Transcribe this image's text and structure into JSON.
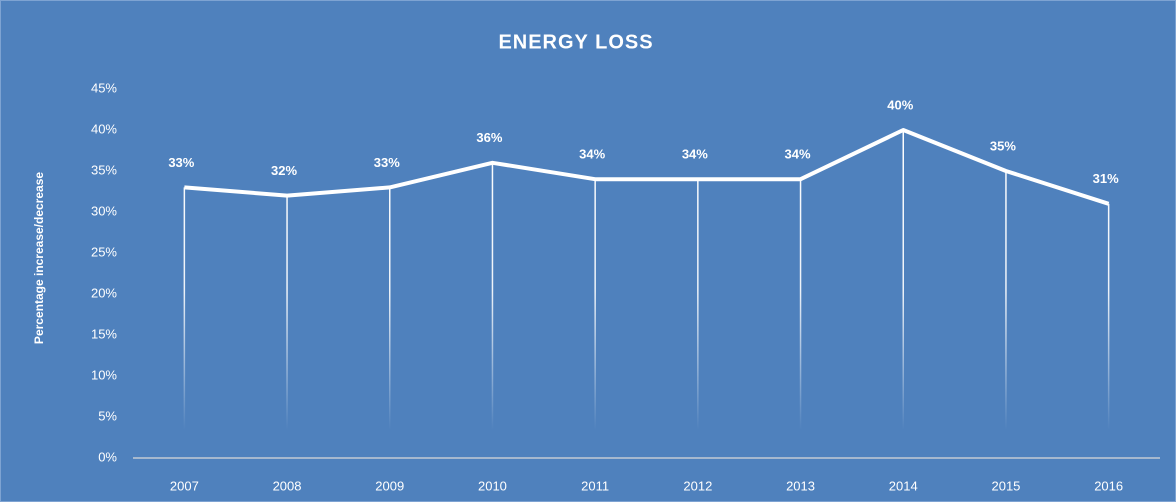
{
  "chart_data": {
    "type": "line",
    "title": "ENERGY LOSS",
    "y_label": "Percentage increase/decrease",
    "categories": [
      "2007",
      "2008",
      "2009",
      "2010",
      "2011",
      "2012",
      "2013",
      "2014",
      "2015",
      "2016"
    ],
    "values": [
      33,
      32,
      33,
      36,
      34,
      34,
      34,
      40,
      35,
      31
    ],
    "value_labels": [
      "33%",
      "32%",
      "33%",
      "36%",
      "34%",
      "34%",
      "34%",
      "40%",
      "35%",
      "31%"
    ],
    "color": "#ffffff",
    "ylim": [
      0,
      45
    ],
    "yticks": [
      {
        "value": 0,
        "label": "0%"
      },
      {
        "value": 5,
        "label": "5%"
      },
      {
        "value": 10,
        "label": "10%"
      },
      {
        "value": 15,
        "label": "15%"
      },
      {
        "value": 20,
        "label": "20%"
      },
      {
        "value": 25,
        "label": "25%"
      },
      {
        "value": 30,
        "label": "30%"
      },
      {
        "value": 35,
        "label": "35%"
      },
      {
        "value": 40,
        "label": "40%"
      },
      {
        "value": 45,
        "label": "45%"
      }
    ],
    "grid": false
  }
}
